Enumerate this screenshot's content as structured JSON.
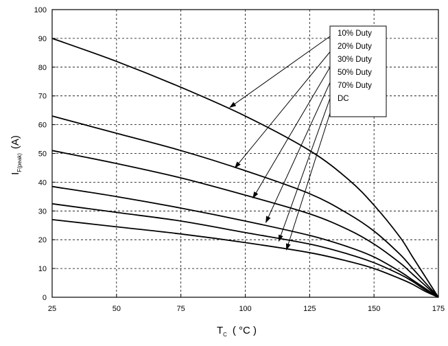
{
  "chart_data": {
    "type": "line",
    "title": "",
    "xlabel": {
      "main": "T",
      "sub": "C",
      "unit": "( °C )"
    },
    "ylabel": {
      "main": "I",
      "sub": "F(peak)",
      "unit": "(A)"
    },
    "xlim": [
      25,
      175
    ],
    "ylim": [
      0,
      100
    ],
    "xticks": [
      25,
      50,
      75,
      100,
      125,
      150,
      175
    ],
    "yticks": [
      0,
      10,
      20,
      30,
      40,
      50,
      60,
      70,
      80,
      90,
      100
    ],
    "grid": true,
    "legend_position": "top-right",
    "x": [
      25,
      50,
      75,
      100,
      125,
      140,
      150,
      160,
      165,
      170,
      175
    ],
    "series": [
      {
        "name": "10% Duty",
        "values": [
          90,
          82,
          73,
          63,
          51,
          41,
          32,
          21,
          14,
          7,
          0
        ]
      },
      {
        "name": "20% Duty",
        "values": [
          63,
          57,
          51,
          44,
          36,
          29,
          23,
          15,
          10,
          5,
          0
        ]
      },
      {
        "name": "30% Duty",
        "values": [
          51,
          46.5,
          41.5,
          35.5,
          29,
          23.5,
          18.5,
          12,
          8,
          4,
          0
        ]
      },
      {
        "name": "50% Duty",
        "values": [
          38.5,
          35,
          31,
          26.5,
          21.5,
          17.5,
          14,
          9,
          6,
          3,
          0
        ]
      },
      {
        "name": "70% Duty",
        "values": [
          32.5,
          29.5,
          26.5,
          22.5,
          18.5,
          15,
          12,
          8,
          5.5,
          2.5,
          0
        ]
      },
      {
        "name": "DC",
        "values": [
          27,
          24.5,
          22,
          19,
          15.5,
          12.5,
          10,
          6.5,
          4.5,
          2,
          0
        ]
      }
    ],
    "annotation_targets": [
      {
        "series": "10% Duty",
        "x": 94,
        "y": 66
      },
      {
        "series": "20% Duty",
        "x": 96,
        "y": 45
      },
      {
        "series": "30% Duty",
        "x": 103,
        "y": 34.5
      },
      {
        "series": "50% Duty",
        "x": 108,
        "y": 26
      },
      {
        "series": "70% Duty",
        "x": 113,
        "y": 19.5
      },
      {
        "series": "DC",
        "x": 116,
        "y": 16.5
      }
    ]
  }
}
